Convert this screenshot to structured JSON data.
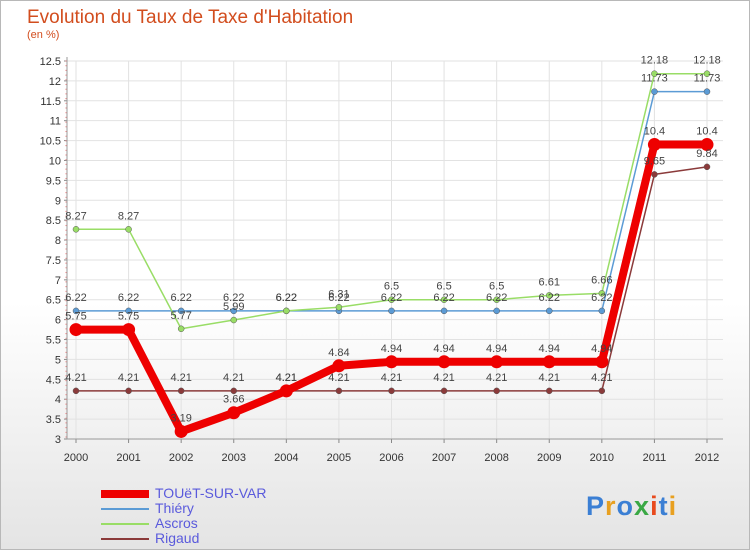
{
  "header": {
    "title": "Evolution du Taux de Taxe d'Habitation",
    "subtitle": "(en %)"
  },
  "logo": {
    "text": "Proxiti",
    "colors": [
      "#3b7fd4",
      "#e8a020",
      "#3b7fd4",
      "#3aa845",
      "#e84a1e",
      "#3b7fd4",
      "#e8a020"
    ]
  },
  "chart_data": {
    "type": "line",
    "title": "Evolution du Taux de Taxe d'Habitation",
    "subtitle": "(en %)",
    "xlabel": "",
    "ylabel": "",
    "x": [
      "2000",
      "2001",
      "2002",
      "2003",
      "2004",
      "2005",
      "2006",
      "2007",
      "2008",
      "2009",
      "2010",
      "2011",
      "2012"
    ],
    "ylim": [
      3,
      12.5
    ],
    "yticks": [
      "3",
      "3.5",
      "4",
      "4.5",
      "5",
      "5.5",
      "6",
      "6.5",
      "7",
      "7.5",
      "8",
      "8.5",
      "9",
      "9.5",
      "10",
      "10.5",
      "11",
      "11.5",
      "12",
      "12.5"
    ],
    "grid": true,
    "legend_position": "bottom-left",
    "series": [
      {
        "name": "TOUëT-SUR-VAR",
        "color": "#ee0000",
        "values": [
          5.75,
          5.75,
          3.19,
          3.66,
          4.21,
          4.84,
          4.94,
          4.94,
          4.94,
          4.94,
          4.94,
          10.4,
          10.4
        ],
        "labels": [
          "5.75",
          "5.75",
          "3.19",
          "3.66",
          "4.21",
          "4.84",
          "4.94",
          "4.94",
          "4.94",
          "4.94",
          "4.94",
          "10.4",
          "10.4"
        ]
      },
      {
        "name": "Thiéry",
        "color": "#5b9bd5",
        "values": [
          6.22,
          6.22,
          6.22,
          6.22,
          6.22,
          6.22,
          6.22,
          6.22,
          6.22,
          6.22,
          6.22,
          11.73,
          11.73
        ],
        "labels": [
          "6.22",
          "6.22",
          "6.22",
          "6.22",
          "6.22",
          "6.22",
          "6.22",
          "6.22",
          "6.22",
          "6.22",
          "6.22",
          "11.73",
          "11.73"
        ]
      },
      {
        "name": "Ascros",
        "color": "#99dd66",
        "values": [
          8.27,
          8.27,
          5.77,
          5.99,
          6.22,
          6.31,
          6.5,
          6.5,
          6.5,
          6.61,
          6.66,
          12.18,
          12.18
        ],
        "labels": [
          "8.27",
          "8.27",
          "5.77",
          "5.99",
          "6.22",
          "6.31",
          "6.5",
          "6.5",
          "6.5",
          "6.61",
          "6.66",
          "12.18",
          "12.18"
        ]
      },
      {
        "name": "Rigaud",
        "color": "#8b3a3a",
        "values": [
          4.21,
          4.21,
          4.21,
          4.21,
          4.21,
          4.21,
          4.21,
          4.21,
          4.21,
          4.21,
          4.21,
          9.65,
          9.84
        ],
        "labels": [
          "4.21",
          "4.21",
          "4.21",
          "4.21",
          "4.21",
          "4.21",
          "4.21",
          "4.21",
          "4.21",
          "4.21",
          "4.21",
          "9.65",
          "9.84"
        ]
      }
    ]
  }
}
